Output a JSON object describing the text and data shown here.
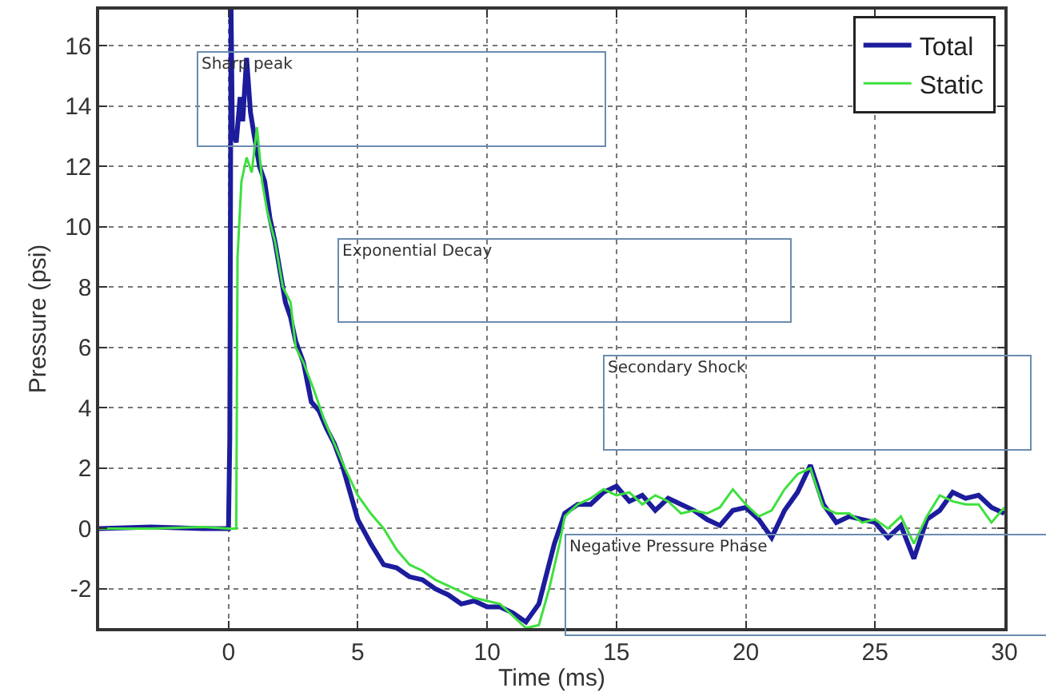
{
  "chart_data": {
    "type": "line",
    "xlabel": "Time (ms)",
    "ylabel": "Pressure (psi)",
    "xlim": [
      -5,
      30
    ],
    "ylim": [
      -3.3,
      17.2
    ],
    "xticks": [
      0,
      5,
      10,
      15,
      20,
      25,
      30
    ],
    "yticks": [
      -2,
      0,
      2,
      4,
      6,
      8,
      10,
      12,
      14,
      16
    ],
    "grid": true,
    "legend": "top right",
    "line_style": "solid",
    "marker": "none",
    "annotations": [
      "Sharp peak",
      "Exponential Decay",
      "Secondary Shock",
      "Negative Pressure Phase"
    ],
    "series": [
      {
        "name": "Total",
        "color": "#1c1c9c",
        "x": [
          -5,
          -3,
          -1,
          0,
          0.05,
          0.1,
          0.15,
          0.3,
          0.45,
          0.55,
          0.7,
          0.85,
          1.0,
          1.2,
          1.4,
          1.6,
          1.8,
          2.0,
          2.2,
          2.4,
          2.6,
          2.9,
          3.2,
          3.5,
          3.8,
          4.1,
          4.4,
          4.7,
          5.0,
          5.5,
          6,
          6.5,
          7,
          7.5,
          8,
          8.5,
          9,
          9.5,
          10,
          10.5,
          11,
          11.5,
          12,
          12.3,
          12.6,
          13,
          13.5,
          14,
          14.5,
          15,
          15.5,
          16,
          16.5,
          17,
          17.5,
          18,
          18.5,
          19,
          19.5,
          20,
          20.5,
          21,
          21.5,
          22,
          22.5,
          23,
          23.5,
          24,
          24.5,
          25,
          25.5,
          26,
          26.5,
          27,
          27.5,
          28,
          28.5,
          29,
          29.5,
          30
        ],
        "values": [
          0,
          0.05,
          0,
          0,
          3,
          17.2,
          13.2,
          12.8,
          14.3,
          13.5,
          15.6,
          13.8,
          13,
          12,
          11.5,
          10.3,
          9.5,
          8.5,
          7.5,
          7,
          6.2,
          5.5,
          4.2,
          3.9,
          3.3,
          2.8,
          2.1,
          1.2,
          0.3,
          -0.5,
          -1.2,
          -1.3,
          -1.6,
          -1.7,
          -2,
          -2.2,
          -2.5,
          -2.4,
          -2.6,
          -2.6,
          -2.8,
          -3.1,
          -2.5,
          -1.5,
          -0.5,
          0.5,
          0.8,
          0.8,
          1.2,
          1.4,
          0.9,
          1.1,
          0.6,
          1.0,
          0.8,
          0.6,
          0.3,
          0.1,
          0.6,
          0.7,
          0.3,
          -0.3,
          0.6,
          1.2,
          2.1,
          0.8,
          0.2,
          0.4,
          0.3,
          0.2,
          -0.3,
          0.1,
          -1.0,
          0.3,
          0.6,
          1.2,
          1.0,
          1.1,
          0.7,
          0.5
        ]
      },
      {
        "name": "Static",
        "color": "#3ee03e",
        "x": [
          -5,
          -3,
          -1,
          0,
          0.3,
          0.35,
          0.5,
          0.7,
          0.9,
          1.1,
          1.3,
          1.5,
          1.8,
          2.1,
          2.4,
          2.6,
          2.9,
          3.3,
          3.7,
          4,
          4.5,
          5,
          5.5,
          6,
          6.5,
          7,
          7.5,
          8,
          8.5,
          9,
          9.5,
          10,
          10.5,
          11,
          11.5,
          12,
          12.4,
          12.8,
          13,
          13.5,
          14,
          14.5,
          15,
          15.5,
          16,
          16.5,
          17,
          17.5,
          18,
          18.5,
          19,
          19.5,
          20,
          20.5,
          21,
          21.5,
          22,
          22.5,
          23,
          23.5,
          24,
          24.5,
          25,
          25.5,
          26,
          26.5,
          27,
          27.5,
          28,
          28.5,
          29,
          29.5,
          30
        ],
        "values": [
          0,
          0,
          0.05,
          0,
          0,
          9,
          11.5,
          12.3,
          11.8,
          13.3,
          11.5,
          10.5,
          9.5,
          8,
          7.5,
          6,
          5.5,
          4.6,
          3.6,
          3,
          2,
          1.1,
          0.5,
          0.0,
          -0.7,
          -1.2,
          -1.4,
          -1.7,
          -1.9,
          -2.1,
          -2.3,
          -2.4,
          -2.5,
          -2.9,
          -3.3,
          -3.2,
          -2,
          -0.5,
          0.4,
          0.8,
          1.0,
          1.3,
          1.1,
          1.2,
          0.8,
          1.1,
          0.9,
          0.5,
          0.6,
          0.5,
          0.7,
          1.3,
          0.8,
          0.4,
          0.6,
          1.3,
          1.8,
          2.0,
          0.7,
          0.5,
          0.5,
          0.2,
          0.3,
          0.0,
          0.4,
          -0.5,
          0.4,
          1.1,
          0.9,
          0.8,
          0.8,
          0.2,
          0.7
        ]
      }
    ]
  }
}
